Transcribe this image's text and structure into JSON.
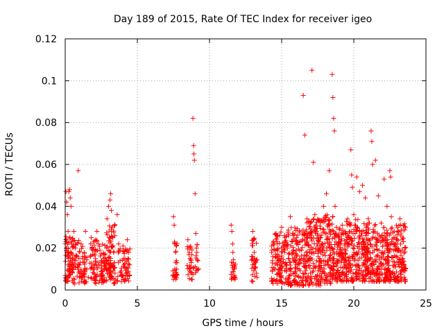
{
  "chart_data": {
    "type": "scatter",
    "title": "Day 189 of 2015, Rate Of TEC Index for receiver igeo",
    "xlabel": "GPS time / hours",
    "ylabel": "ROTI / TECUs",
    "xlim": [
      0,
      25
    ],
    "ylim": [
      0,
      0.12
    ],
    "xticks": [
      "0",
      "5",
      "10",
      "15",
      "20",
      "25"
    ],
    "yticks": [
      "0",
      "0.02",
      "0.04",
      "0.06",
      "0.08",
      "0.1",
      "0.12"
    ],
    "grid": true,
    "marker": "plus",
    "color": "#ff0000",
    "series": [
      {
        "points": [
          [
            0.05,
            0.047
          ],
          [
            0.1,
            0.042
          ],
          [
            0.15,
            0.036
          ],
          [
            0.2,
            0.028
          ],
          [
            0.25,
            0.047
          ],
          [
            0.3,
            0.048
          ],
          [
            0.35,
            0.044
          ],
          [
            0.4,
            0.04
          ],
          [
            0.05,
            0.024
          ],
          [
            0.1,
            0.02
          ],
          [
            0.15,
            0.016
          ],
          [
            0.2,
            0.012
          ],
          [
            0.25,
            0.009
          ],
          [
            0.3,
            0.007
          ],
          [
            0.35,
            0.014
          ],
          [
            0.4,
            0.018
          ],
          [
            0.45,
            0.022
          ],
          [
            0.5,
            0.01
          ],
          [
            0.6,
            0.028
          ],
          [
            0.7,
            0.02
          ],
          [
            0.8,
            0.016
          ],
          [
            0.9,
            0.057
          ],
          [
            0.95,
            0.012
          ],
          [
            1.0,
            0.008
          ],
          [
            1.1,
            0.022
          ],
          [
            1.2,
            0.016
          ],
          [
            1.3,
            0.013
          ],
          [
            1.4,
            0.028
          ],
          [
            1.5,
            0.01
          ],
          [
            1.6,
            0.006
          ],
          [
            1.8,
            0.025
          ],
          [
            1.85,
            0.02
          ],
          [
            1.9,
            0.017
          ],
          [
            1.95,
            0.012
          ],
          [
            2.0,
            0.008
          ],
          [
            2.05,
            0.005
          ],
          [
            2.1,
            0.015
          ],
          [
            2.2,
            0.028
          ],
          [
            2.3,
            0.022
          ],
          [
            2.4,
            0.019
          ],
          [
            2.5,
            0.014
          ],
          [
            2.6,
            0.009
          ],
          [
            2.7,
            0.006
          ],
          [
            2.9,
            0.034
          ],
          [
            3.0,
            0.04
          ],
          [
            3.1,
            0.043
          ],
          [
            3.15,
            0.046
          ],
          [
            3.2,
            0.038
          ],
          [
            3.25,
            0.03
          ],
          [
            3.3,
            0.025
          ],
          [
            3.35,
            0.018
          ],
          [
            3.4,
            0.013
          ],
          [
            3.45,
            0.008
          ],
          [
            3.5,
            0.005
          ],
          [
            3.6,
            0.036
          ],
          [
            3.7,
            0.022
          ],
          [
            3.8,
            0.014
          ],
          [
            4.0,
            0.021
          ],
          [
            4.05,
            0.015
          ],
          [
            4.1,
            0.011
          ],
          [
            4.2,
            0.008
          ],
          [
            4.3,
            0.024
          ],
          [
            4.4,
            0.018
          ],
          [
            4.45,
            0.012
          ],
          [
            7.5,
            0.035
          ],
          [
            7.55,
            0.031
          ],
          [
            7.6,
            0.022
          ],
          [
            7.65,
            0.018
          ],
          [
            7.7,
            0.014
          ],
          [
            7.72,
            0.01
          ],
          [
            7.75,
            0.007
          ],
          [
            8.5,
            0.024
          ],
          [
            8.6,
            0.018
          ],
          [
            8.65,
            0.015
          ],
          [
            8.7,
            0.011
          ],
          [
            8.75,
            0.008
          ],
          [
            8.8,
            0.005
          ],
          [
            8.85,
            0.082
          ],
          [
            8.9,
            0.069
          ],
          [
            8.92,
            0.065
          ],
          [
            8.95,
            0.062
          ],
          [
            9.0,
            0.046
          ],
          [
            9.05,
            0.027
          ],
          [
            9.1,
            0.02
          ],
          [
            9.2,
            0.014
          ],
          [
            9.25,
            0.01
          ],
          [
            11.5,
            0.031
          ],
          [
            11.55,
            0.028
          ],
          [
            11.6,
            0.022
          ],
          [
            11.62,
            0.018
          ],
          [
            11.65,
            0.013
          ],
          [
            11.7,
            0.01
          ],
          [
            11.75,
            0.007
          ],
          [
            13.0,
            0.028
          ],
          [
            13.05,
            0.024
          ],
          [
            13.1,
            0.018
          ],
          [
            13.15,
            0.014
          ],
          [
            13.2,
            0.011
          ],
          [
            13.25,
            0.008
          ],
          [
            13.3,
            0.006
          ],
          [
            14.4,
            0.022
          ],
          [
            14.6,
            0.016
          ],
          [
            14.8,
            0.01
          ],
          [
            15.0,
            0.03
          ],
          [
            15.2,
            0.026
          ],
          [
            15.4,
            0.02
          ],
          [
            15.6,
            0.035
          ],
          [
            15.8,
            0.018
          ],
          [
            16.0,
            0.014
          ],
          [
            16.2,
            0.01
          ],
          [
            16.5,
            0.093
          ],
          [
            16.6,
            0.074
          ],
          [
            16.8,
            0.026
          ],
          [
            17.0,
            0.032
          ],
          [
            17.1,
            0.105
          ],
          [
            17.2,
            0.061
          ],
          [
            17.3,
            0.036
          ],
          [
            17.4,
            0.028
          ],
          [
            17.5,
            0.021
          ],
          [
            17.7,
            0.014
          ],
          [
            17.9,
            0.04
          ],
          [
            18.1,
            0.046
          ],
          [
            18.3,
            0.057
          ],
          [
            18.5,
            0.103
          ],
          [
            18.55,
            0.092
          ],
          [
            18.6,
            0.082
          ],
          [
            18.65,
            0.076
          ],
          [
            18.7,
            0.04
          ],
          [
            18.8,
            0.03
          ],
          [
            18.9,
            0.022
          ],
          [
            19.0,
            0.016
          ],
          [
            19.2,
            0.031
          ],
          [
            19.4,
            0.028
          ],
          [
            19.6,
            0.022
          ],
          [
            19.8,
            0.067
          ],
          [
            19.85,
            0.055
          ],
          [
            19.9,
            0.049
          ],
          [
            20.0,
            0.036
          ],
          [
            20.2,
            0.054
          ],
          [
            20.4,
            0.047
          ],
          [
            20.6,
            0.05
          ],
          [
            20.8,
            0.044
          ],
          [
            21.0,
            0.034
          ],
          [
            21.2,
            0.076
          ],
          [
            21.25,
            0.071
          ],
          [
            21.3,
            0.06
          ],
          [
            21.5,
            0.062
          ],
          [
            21.7,
            0.045
          ],
          [
            21.9,
            0.032
          ],
          [
            22.1,
            0.053
          ],
          [
            22.3,
            0.04
          ],
          [
            22.5,
            0.057
          ],
          [
            22.55,
            0.054
          ],
          [
            22.6,
            0.035
          ],
          [
            22.8,
            0.028
          ],
          [
            23.0,
            0.022
          ],
          [
            23.2,
            0.034
          ],
          [
            23.4,
            0.015
          ],
          [
            23.5,
            0.01
          ]
        ]
      }
    ],
    "clusters": [
      {
        "x": [
          0.0,
          0.55
        ],
        "y": [
          0.004,
          0.026
        ],
        "n": 70
      },
      {
        "x": [
          0.55,
          1.5
        ],
        "y": [
          0.003,
          0.024
        ],
        "n": 70
      },
      {
        "x": [
          1.7,
          2.25
        ],
        "y": [
          0.003,
          0.024
        ],
        "n": 45
      },
      {
        "x": [
          2.3,
          2.85
        ],
        "y": [
          0.003,
          0.022
        ],
        "n": 50
      },
      {
        "x": [
          2.85,
          3.45
        ],
        "y": [
          0.003,
          0.032
        ],
        "n": 80
      },
      {
        "x": [
          3.6,
          4.5
        ],
        "y": [
          0.004,
          0.02
        ],
        "n": 55
      },
      {
        "x": [
          7.45,
          7.75
        ],
        "y": [
          0.005,
          0.024
        ],
        "n": 25
      },
      {
        "x": [
          8.45,
          9.2
        ],
        "y": [
          0.004,
          0.022
        ],
        "n": 35
      },
      {
        "x": [
          11.5,
          11.8
        ],
        "y": [
          0.005,
          0.016
        ],
        "n": 20
      },
      {
        "x": [
          12.9,
          13.3
        ],
        "y": [
          0.004,
          0.026
        ],
        "n": 30
      },
      {
        "x": [
          14.3,
          15.4
        ],
        "y": [
          0.003,
          0.028
        ],
        "n": 120
      },
      {
        "x": [
          15.4,
          16.6
        ],
        "y": [
          0.002,
          0.03
        ],
        "n": 140
      },
      {
        "x": [
          16.6,
          17.7
        ],
        "y": [
          0.002,
          0.034
        ],
        "n": 160
      },
      {
        "x": [
          17.7,
          18.6
        ],
        "y": [
          0.003,
          0.036
        ],
        "n": 130
      },
      {
        "x": [
          18.6,
          19.4
        ],
        "y": [
          0.004,
          0.03
        ],
        "n": 110
      },
      {
        "x": [
          19.4,
          20.4
        ],
        "y": [
          0.004,
          0.034
        ],
        "n": 140
      },
      {
        "x": [
          20.4,
          21.6
        ],
        "y": [
          0.004,
          0.032
        ],
        "n": 160
      },
      {
        "x": [
          21.6,
          22.6
        ],
        "y": [
          0.004,
          0.03
        ],
        "n": 140
      },
      {
        "x": [
          22.6,
          23.6
        ],
        "y": [
          0.004,
          0.032
        ],
        "n": 130
      }
    ]
  }
}
